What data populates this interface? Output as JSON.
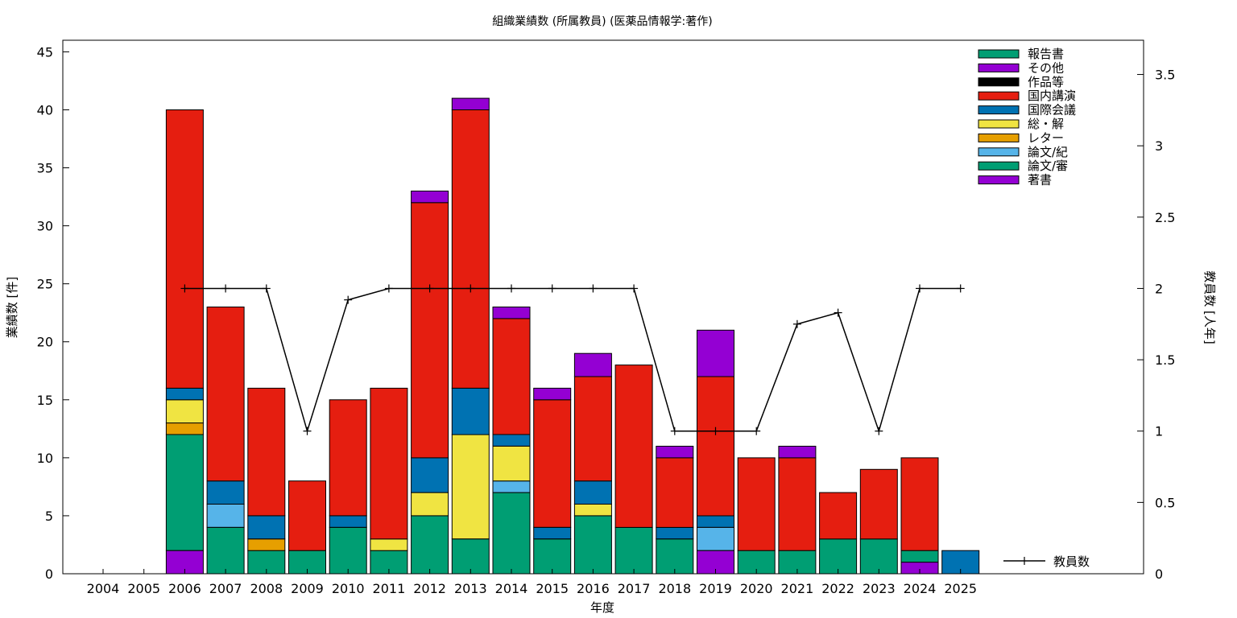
{
  "chart_data": {
    "type": "bar",
    "stacked": true,
    "title": "組織業績数 (所属教員) (医薬品情報学:著作)",
    "xlabel": "年度",
    "ylabel": "業績数 [件]",
    "y2label": "教員数 [人年]",
    "ylim": [
      0,
      46
    ],
    "y2lim": [
      0,
      3.74
    ],
    "yticks": [
      "0",
      "5",
      "10",
      "15",
      "20",
      "25",
      "30",
      "35",
      "40",
      "45"
    ],
    "y2ticks": [
      "0",
      "0.5",
      "1",
      "1.5",
      "2",
      "2.5",
      "3",
      "3.5"
    ],
    "categories": [
      "2004",
      "2005",
      "2006",
      "2007",
      "2008",
      "2009",
      "2010",
      "2011",
      "2012",
      "2013",
      "2014",
      "2015",
      "2016",
      "2017",
      "2018",
      "2019",
      "2020",
      "2021",
      "2022",
      "2023",
      "2024",
      "2025"
    ],
    "legend_position": "top-right",
    "grid": false,
    "series": [
      {
        "name": "著書",
        "color": "#9400d3",
        "values": [
          0,
          0,
          2,
          0,
          0,
          0,
          0,
          0,
          0,
          0,
          0,
          0,
          0,
          0,
          0,
          2,
          0,
          0,
          0,
          0,
          1,
          0
        ]
      },
      {
        "name": "論文/審",
        "color": "#009e73",
        "values": [
          0,
          0,
          10,
          4,
          2,
          2,
          4,
          2,
          5,
          3,
          7,
          3,
          5,
          4,
          3,
          0,
          2,
          2,
          3,
          3,
          1,
          0
        ]
      },
      {
        "name": "論文/紀",
        "color": "#56b4e9",
        "values": [
          0,
          0,
          0,
          2,
          0,
          0,
          0,
          0,
          0,
          0,
          1,
          0,
          0,
          0,
          0,
          2,
          0,
          0,
          0,
          0,
          0,
          0
        ]
      },
      {
        "name": "レター",
        "color": "#e69f00",
        "values": [
          0,
          0,
          1,
          0,
          1,
          0,
          0,
          0,
          0,
          0,
          0,
          0,
          0,
          0,
          0,
          0,
          0,
          0,
          0,
          0,
          0,
          0
        ]
      },
      {
        "name": "総・解",
        "color": "#f0e442",
        "values": [
          0,
          0,
          2,
          0,
          0,
          0,
          0,
          1,
          2,
          9,
          3,
          0,
          1,
          0,
          0,
          0,
          0,
          0,
          0,
          0,
          0,
          0
        ]
      },
      {
        "name": "国際会議",
        "color": "#0072b2",
        "values": [
          0,
          0,
          1,
          2,
          2,
          0,
          1,
          0,
          3,
          4,
          1,
          1,
          2,
          0,
          1,
          1,
          0,
          0,
          0,
          0,
          0,
          2
        ]
      },
      {
        "name": "国内講演",
        "color": "#e51e10",
        "values": [
          0,
          0,
          24,
          15,
          11,
          6,
          10,
          13,
          22,
          24,
          10,
          11,
          9,
          14,
          6,
          12,
          8,
          8,
          4,
          6,
          8,
          0
        ]
      },
      {
        "name": "作品等",
        "color": "#000000",
        "values": [
          0,
          0,
          0,
          0,
          0,
          0,
          0,
          0,
          0,
          0,
          0,
          0,
          0,
          0,
          0,
          0,
          0,
          0,
          0,
          0,
          0,
          0
        ]
      },
      {
        "name": "その他",
        "color": "#9400d3",
        "values": [
          0,
          0,
          0,
          0,
          0,
          0,
          0,
          0,
          1,
          1,
          1,
          1,
          2,
          0,
          1,
          4,
          0,
          1,
          0,
          0,
          0,
          0
        ]
      },
      {
        "name": "報告書",
        "color": "#009e73",
        "values": [
          0,
          0,
          0,
          0,
          0,
          0,
          0,
          0,
          0,
          0,
          0,
          0,
          0,
          0,
          0,
          0,
          0,
          0,
          0,
          0,
          0,
          0
        ]
      }
    ],
    "line_series": {
      "name": "教員数",
      "color": "#000000",
      "axis": "y2",
      "categories": [
        "2006",
        "2007",
        "2008",
        "2009",
        "2010",
        "2011",
        "2012",
        "2013",
        "2014",
        "2015",
        "2016",
        "2017",
        "2018",
        "2019",
        "2020",
        "2021",
        "2022",
        "2023",
        "2024",
        "2025"
      ],
      "values": [
        2,
        2,
        2,
        1,
        1.92,
        2,
        2,
        2,
        2,
        2,
        2,
        2,
        1,
        1,
        1,
        1.75,
        1.83,
        1,
        2,
        2
      ]
    }
  }
}
